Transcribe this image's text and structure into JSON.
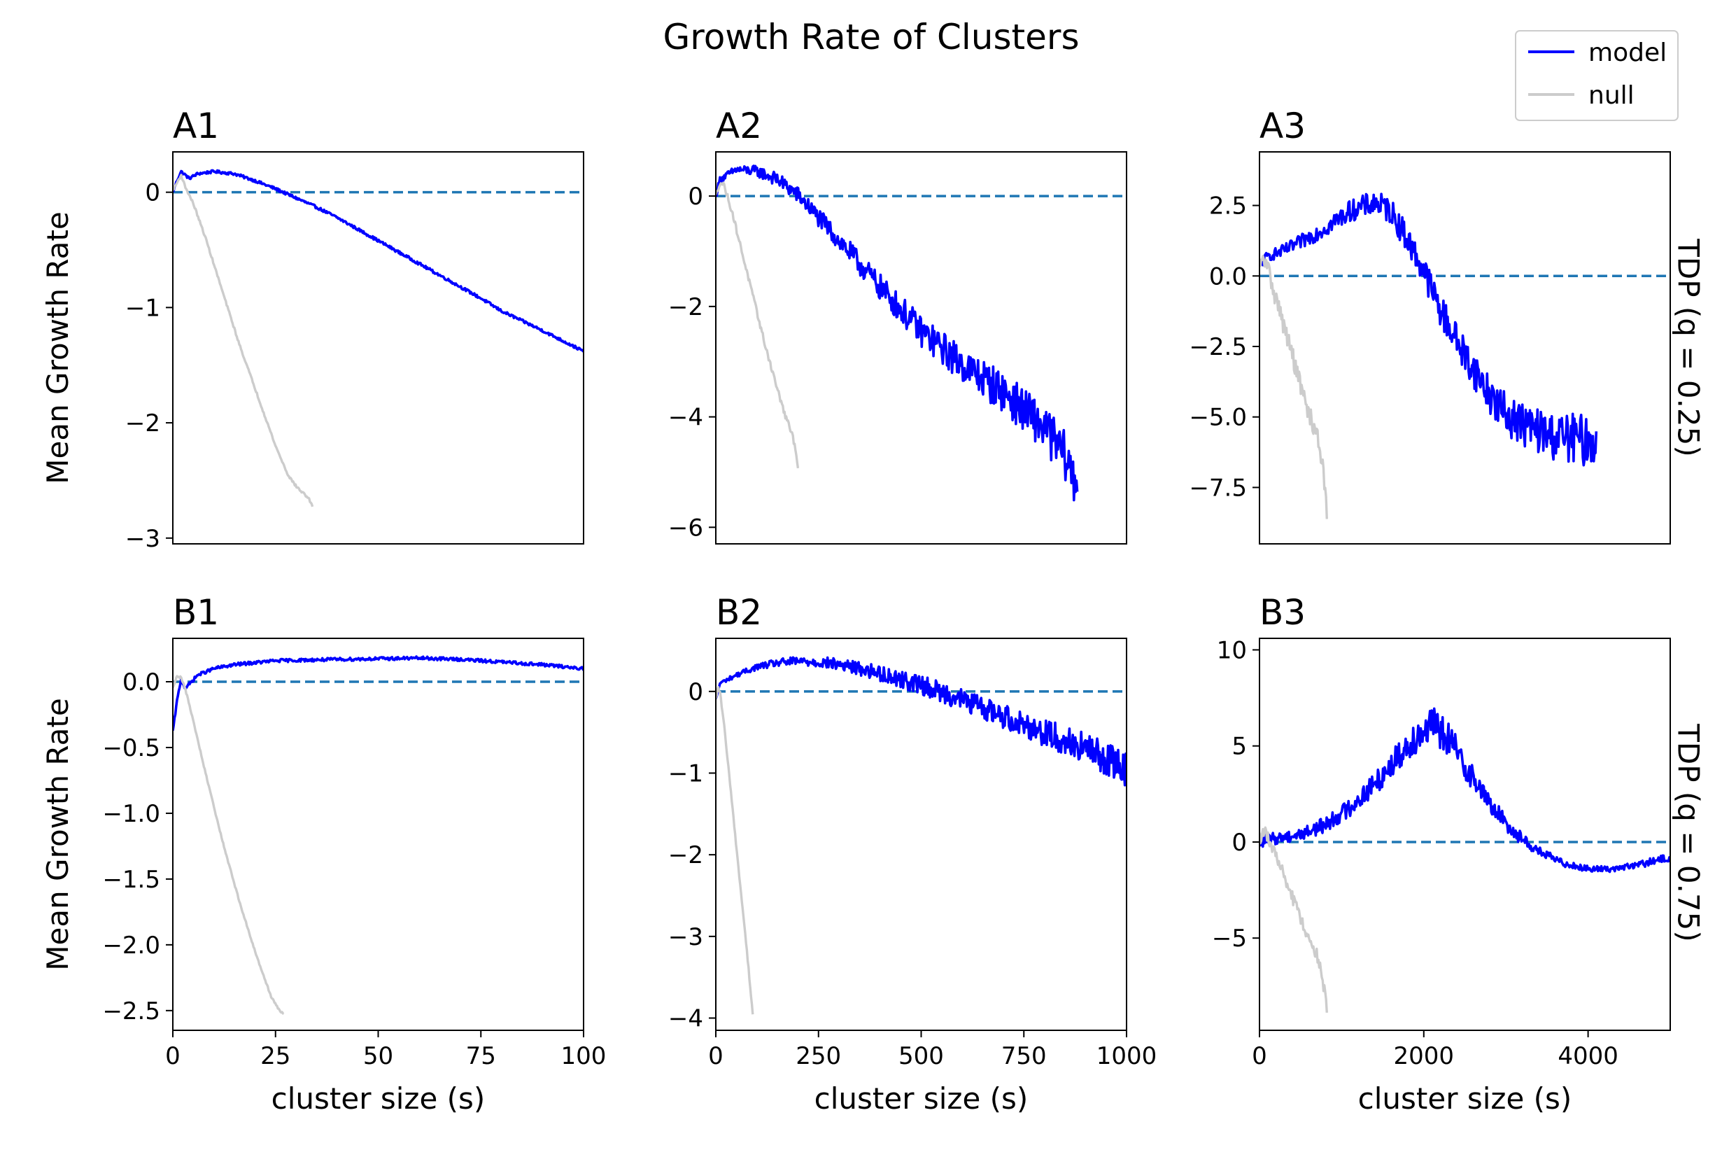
{
  "figure": {
    "title": "Growth Rate of Clusters",
    "legend": {
      "placement": "top-right",
      "entries": [
        {
          "label": "model",
          "color": "#0000ff"
        },
        {
          "label": "null",
          "color": "#cccccc"
        }
      ]
    },
    "row_labels": [
      "TDP (q = 0.25)",
      "TDP (q = 0.75)"
    ],
    "colors": {
      "model": "#0000ff",
      "null": "#cccccc",
      "zero_line": "#1f77b4"
    }
  },
  "chart_data": [
    {
      "panel": "A1",
      "type": "line",
      "title": "A1",
      "xlabel": "",
      "ylabel": "Mean Growth Rate",
      "xlim": [
        0,
        100
      ],
      "ylim": [
        -3.05,
        0.35
      ],
      "xticks": [],
      "yticks": [
        0,
        -1,
        -2,
        -3
      ],
      "yticklabels": [
        "0",
        "−1",
        "−2",
        "−3"
      ],
      "zero_line": 0,
      "grid": false,
      "series": [
        {
          "name": "model",
          "noise": 0.012,
          "x": [
            0,
            1,
            2,
            4,
            6,
            10,
            15,
            20,
            25,
            30,
            35,
            40,
            50,
            60,
            70,
            75,
            80,
            90,
            100
          ],
          "y": [
            0,
            0.1,
            0.18,
            0.12,
            0.16,
            0.18,
            0.16,
            0.1,
            0.03,
            -0.05,
            -0.13,
            -0.22,
            -0.42,
            -0.62,
            -0.82,
            -0.92,
            -1.03,
            -1.2,
            -1.38
          ]
        },
        {
          "name": "null",
          "noise": 0.01,
          "x": [
            0,
            1,
            2,
            3,
            5,
            8,
            12,
            16,
            20,
            25,
            28,
            30,
            32,
            33,
            34
          ],
          "y": [
            0.02,
            0.08,
            0.15,
            0.05,
            -0.1,
            -0.4,
            -0.85,
            -1.3,
            -1.7,
            -2.2,
            -2.45,
            -2.55,
            -2.62,
            -2.65,
            -2.73
          ]
        }
      ]
    },
    {
      "panel": "A2",
      "type": "line",
      "title": "A2",
      "xlabel": "",
      "ylabel": "",
      "xlim": [
        0,
        1000
      ],
      "ylim": [
        -6.3,
        0.8
      ],
      "xticks": [],
      "yticks": [
        0,
        -2,
        -4,
        -6
      ],
      "yticklabels": [
        "0",
        "−2",
        "−4",
        "−6"
      ],
      "zero_line": 0,
      "grid": false,
      "series": [
        {
          "name": "model",
          "noise": 0.18,
          "noise_growth": 2.2,
          "x": [
            0,
            10,
            50,
            100,
            150,
            200,
            300,
            400,
            500,
            600,
            700,
            800,
            850,
            870,
            880
          ],
          "y": [
            0,
            0.3,
            0.48,
            0.45,
            0.3,
            0.02,
            -0.8,
            -1.65,
            -2.45,
            -3.05,
            -3.55,
            -4.2,
            -4.7,
            -5.1,
            -5.2
          ]
        },
        {
          "name": "null",
          "noise": 0.05,
          "x": [
            0,
            10,
            20,
            40,
            60,
            80,
            100,
            120,
            150,
            170,
            185,
            195,
            200
          ],
          "y": [
            0,
            0.25,
            0.2,
            -0.3,
            -0.9,
            -1.5,
            -2.1,
            -2.7,
            -3.5,
            -4.0,
            -4.3,
            -4.6,
            -4.9
          ]
        }
      ]
    },
    {
      "panel": "A3",
      "type": "line",
      "title": "A3",
      "xlabel": "",
      "ylabel": "",
      "xlim": [
        0,
        5000
      ],
      "ylim": [
        -9.5,
        4.4
      ],
      "xticks": [],
      "yticks": [
        2.5,
        0,
        -2.5,
        -5,
        -7.5
      ],
      "yticklabels": [
        "2.5",
        "0.0",
        "−2.5",
        "−5.0",
        "−7.5"
      ],
      "zero_line": 0,
      "grid": false,
      "series": [
        {
          "name": "model",
          "noise": 0.55,
          "noise_growth": 1.4,
          "x": [
            0,
            100,
            300,
            500,
            800,
            1100,
            1400,
            1600,
            1800,
            2000,
            2200,
            2500,
            2800,
            3000,
            3300,
            3600,
            3900,
            4100
          ],
          "y": [
            0.4,
            0.7,
            0.9,
            1.2,
            1.7,
            2.3,
            2.6,
            2.3,
            1.3,
            0.2,
            -1.2,
            -2.8,
            -4.2,
            -4.9,
            -5.4,
            -5.7,
            -5.8,
            -5.9
          ]
        },
        {
          "name": "null",
          "noise": 0.35,
          "x": [
            0,
            50,
            100,
            200,
            300,
            400,
            500,
            600,
            700,
            750,
            800,
            820
          ],
          "y": [
            0.2,
            0.6,
            0.3,
            -0.8,
            -1.8,
            -2.8,
            -3.9,
            -4.9,
            -5.6,
            -6.3,
            -7.5,
            -8.8
          ]
        }
      ]
    },
    {
      "panel": "B1",
      "type": "line",
      "title": "B1",
      "xlabel": "cluster size (s)",
      "ylabel": "Mean Growth Rate",
      "xlim": [
        0,
        100
      ],
      "ylim": [
        -2.65,
        0.33
      ],
      "xticks": [
        0,
        25,
        50,
        75,
        100
      ],
      "xticklabels": [
        "0",
        "25",
        "50",
        "75",
        "100"
      ],
      "yticks": [
        0,
        -0.5,
        -1,
        -1.5,
        -2,
        -2.5
      ],
      "yticklabels": [
        "0.0",
        "−0.5",
        "−1.0",
        "−1.5",
        "−2.0",
        "−2.5"
      ],
      "zero_line": 0,
      "grid": false,
      "series": [
        {
          "name": "model",
          "noise": 0.012,
          "x": [
            0,
            1,
            2,
            3,
            4,
            6,
            10,
            15,
            25,
            40,
            50,
            60,
            70,
            80,
            90,
            100
          ],
          "y": [
            -0.38,
            -0.15,
            0.02,
            -0.05,
            -0.02,
            0.05,
            0.1,
            0.13,
            0.16,
            0.17,
            0.175,
            0.18,
            0.17,
            0.15,
            0.13,
            0.1
          ]
        },
        {
          "name": "null",
          "noise": 0.008,
          "x": [
            0,
            1,
            2,
            3,
            5,
            8,
            12,
            16,
            20,
            24,
            26,
            27
          ],
          "y": [
            -0.05,
            0.05,
            0.03,
            -0.05,
            -0.3,
            -0.7,
            -1.2,
            -1.65,
            -2.05,
            -2.4,
            -2.5,
            -2.52
          ]
        }
      ]
    },
    {
      "panel": "B2",
      "type": "line",
      "title": "B2",
      "xlabel": "cluster size (s)",
      "ylabel": "",
      "xlim": [
        0,
        1000
      ],
      "ylim": [
        -4.15,
        0.65
      ],
      "xticks": [
        0,
        250,
        500,
        750,
        1000
      ],
      "xticklabels": [
        "0",
        "250",
        "500",
        "750",
        "1000"
      ],
      "yticks": [
        0,
        -1,
        -2,
        -3,
        -4
      ],
      "yticklabels": [
        "0",
        "−1",
        "−2",
        "−3",
        "−4"
      ],
      "zero_line": 0,
      "grid": false,
      "series": [
        {
          "name": "model",
          "noise": 0.06,
          "noise_growth": 3.2,
          "x": [
            0,
            10,
            50,
            100,
            150,
            200,
            250,
            300,
            350,
            400,
            450,
            500,
            600,
            700,
            800,
            900,
            1000
          ],
          "y": [
            -0.1,
            0.1,
            0.2,
            0.3,
            0.35,
            0.37,
            0.36,
            0.33,
            0.28,
            0.22,
            0.15,
            0.08,
            -0.1,
            -0.3,
            -0.5,
            -0.7,
            -0.95
          ]
        },
        {
          "name": "null",
          "noise": 0.02,
          "x": [
            0,
            5,
            10,
            20,
            30,
            40,
            50,
            60,
            70,
            80,
            85,
            90
          ],
          "y": [
            -0.1,
            0.05,
            0.0,
            -0.4,
            -0.9,
            -1.4,
            -1.9,
            -2.4,
            -2.9,
            -3.4,
            -3.7,
            -3.95
          ]
        }
      ]
    },
    {
      "panel": "B3",
      "type": "line",
      "title": "B3",
      "xlabel": "cluster size (s)",
      "ylabel": "",
      "xlim": [
        0,
        5000
      ],
      "ylim": [
        -9.8,
        10.6
      ],
      "xticks": [
        0,
        2000,
        4000
      ],
      "xticklabels": [
        "0",
        "2000",
        "4000"
      ],
      "yticks": [
        10,
        5,
        0,
        -5
      ],
      "yticklabels": [
        "10",
        "5",
        "0",
        "−5"
      ],
      "zero_line": 0,
      "grid": false,
      "series": [
        {
          "name": "model",
          "noise": 0.5,
          "noise_envelope": "peak",
          "x": [
            0,
            200,
            500,
            800,
            1100,
            1400,
            1700,
            1900,
            2100,
            2300,
            2500,
            2800,
            3100,
            3400,
            3700,
            4000,
            4300,
            4600,
            5000
          ],
          "y": [
            0,
            0.2,
            0.4,
            0.9,
            1.8,
            3.0,
            4.5,
            5.5,
            6.1,
            5.4,
            4.0,
            2.0,
            0.5,
            -0.5,
            -1.1,
            -1.4,
            -1.4,
            -1.2,
            -0.8
          ]
        },
        {
          "name": "null",
          "noise": 0.35,
          "x": [
            0,
            50,
            100,
            200,
            300,
            400,
            500,
            600,
            700,
            750,
            800,
            820
          ],
          "y": [
            0.2,
            0.6,
            0.3,
            -0.8,
            -1.8,
            -2.9,
            -4.0,
            -5.0,
            -5.8,
            -6.8,
            -8.0,
            -8.9
          ]
        }
      ]
    }
  ]
}
